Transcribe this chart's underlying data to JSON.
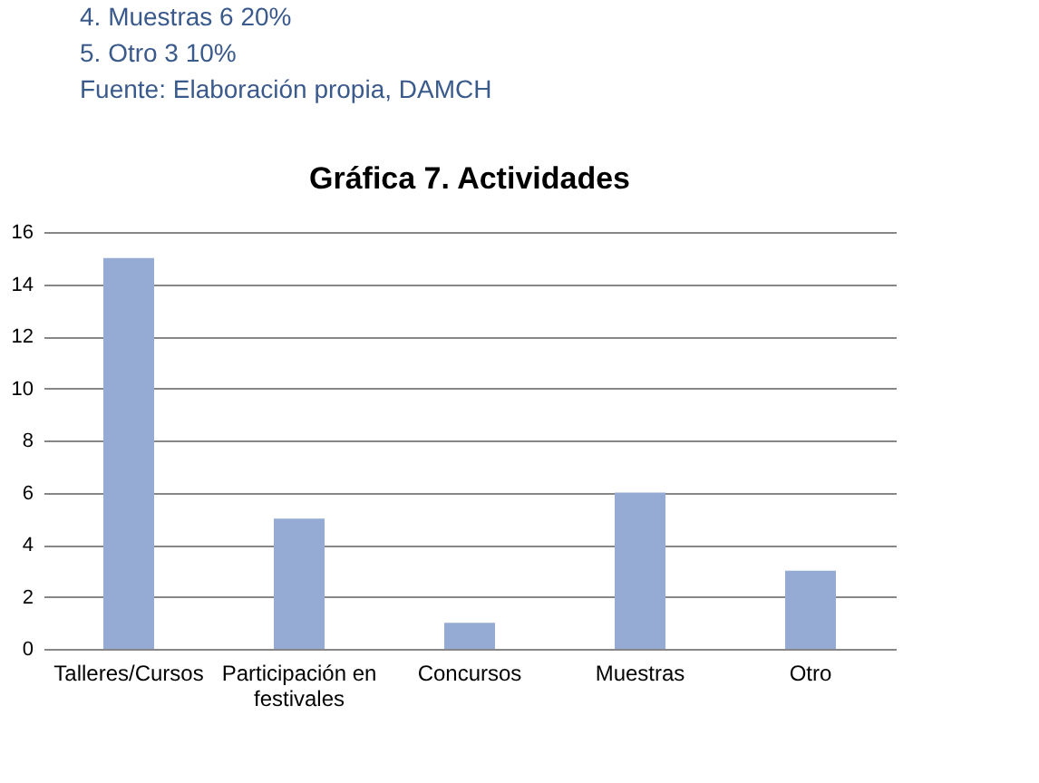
{
  "chart_data": {
    "type": "bar",
    "title": "Gráfica 7. Actividades",
    "categories": [
      "Talleres/Cursos",
      "Participación en festivales",
      "Concursos",
      "Muestras",
      "Otro"
    ],
    "values": [
      15,
      5,
      1,
      6,
      3
    ],
    "color": "#95abd3",
    "ylim": [
      0,
      16
    ],
    "yticks": [
      0,
      2,
      4,
      6,
      8,
      10,
      12,
      14,
      16
    ],
    "grid": "y",
    "annotations": [
      "4. Muestras 6 20%",
      "5. Otro 3 10%",
      "Fuente: Elaboración propia, DAMCH"
    ]
  }
}
